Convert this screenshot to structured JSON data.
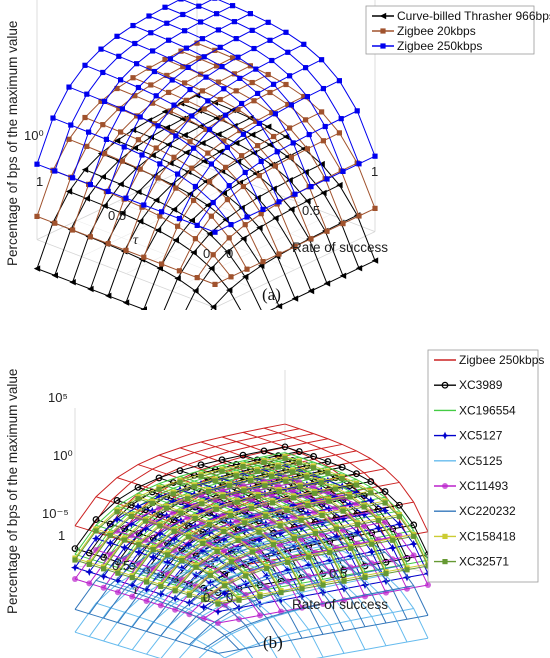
{
  "chart_data": [
    {
      "type": "surface3d",
      "panel": "(a)",
      "xlabel": "Rate of success",
      "ylabel": "τ",
      "zlabel": "Percentage of bps of the maximum value",
      "x_ticks": [
        "0",
        "0.5",
        "1"
      ],
      "y_ticks": [
        "0",
        "0.5",
        "1"
      ],
      "z_ticks": [
        "10⁰"
      ],
      "x": [
        0,
        0.1,
        0.2,
        0.3,
        0.4,
        0.5,
        0.6,
        0.7,
        0.8,
        0.9,
        1.0
      ],
      "y": [
        0,
        0.1,
        0.2,
        0.3,
        0.4,
        0.5,
        0.6,
        0.7,
        0.8,
        0.9,
        1.0
      ],
      "legend_position": "top-right",
      "series": [
        {
          "name": "Curve-billed Thrasher 966bps",
          "color": "#000000",
          "marker": "triangle",
          "level": 0.0
        },
        {
          "name": "Zigbee 20kbps",
          "color": "#a0522d",
          "marker": "square",
          "level": 0.9
        },
        {
          "name": "Zigbee 250kbps",
          "color": "#0000ee",
          "marker": "square",
          "level": 1.8
        }
      ]
    },
    {
      "type": "surface3d",
      "panel": "(b)",
      "xlabel": "Rate of success",
      "ylabel": "τ",
      "zlabel": "Percentage of bps of the maximum value",
      "x_ticks": [
        "0",
        "0.5",
        "1"
      ],
      "y_ticks": [
        "0",
        "0.5",
        "1"
      ],
      "z_ticks": [
        "10⁵",
        "10⁰",
        "10⁻⁵"
      ],
      "x": [
        0,
        0.1,
        0.2,
        0.3,
        0.4,
        0.5,
        0.6,
        0.7,
        0.8,
        0.9,
        1.0
      ],
      "y": [
        0,
        0.1,
        0.2,
        0.3,
        0.4,
        0.5,
        0.6,
        0.7,
        0.8,
        0.9,
        1.0
      ],
      "legend_position": "top-right",
      "series": [
        {
          "name": "Zigbee 250kbps",
          "color": "#cc2222",
          "marker": "none",
          "level": 1.6
        },
        {
          "name": "XC3989",
          "color": "#000000",
          "marker": "circle",
          "level": 1.0
        },
        {
          "name": "XC196554",
          "color": "#44cc44",
          "marker": "none",
          "level": 0.85
        },
        {
          "name": "XC5127",
          "color": "#0000cc",
          "marker": "star",
          "level": 0.5
        },
        {
          "name": "XC5125",
          "color": "#66bbee",
          "marker": "none",
          "level": -1.2
        },
        {
          "name": "XC11493",
          "color": "#bb22cc",
          "marker": "hexagram",
          "level": 0.2
        },
        {
          "name": "XC220232",
          "color": "#3377bb",
          "marker": "none",
          "level": -0.6
        },
        {
          "name": "XC158418",
          "color": "#cccc33",
          "marker": "square",
          "level": 0.75
        },
        {
          "name": "XC32571",
          "color": "#669933",
          "marker": "square",
          "level": 0.7
        }
      ]
    }
  ]
}
